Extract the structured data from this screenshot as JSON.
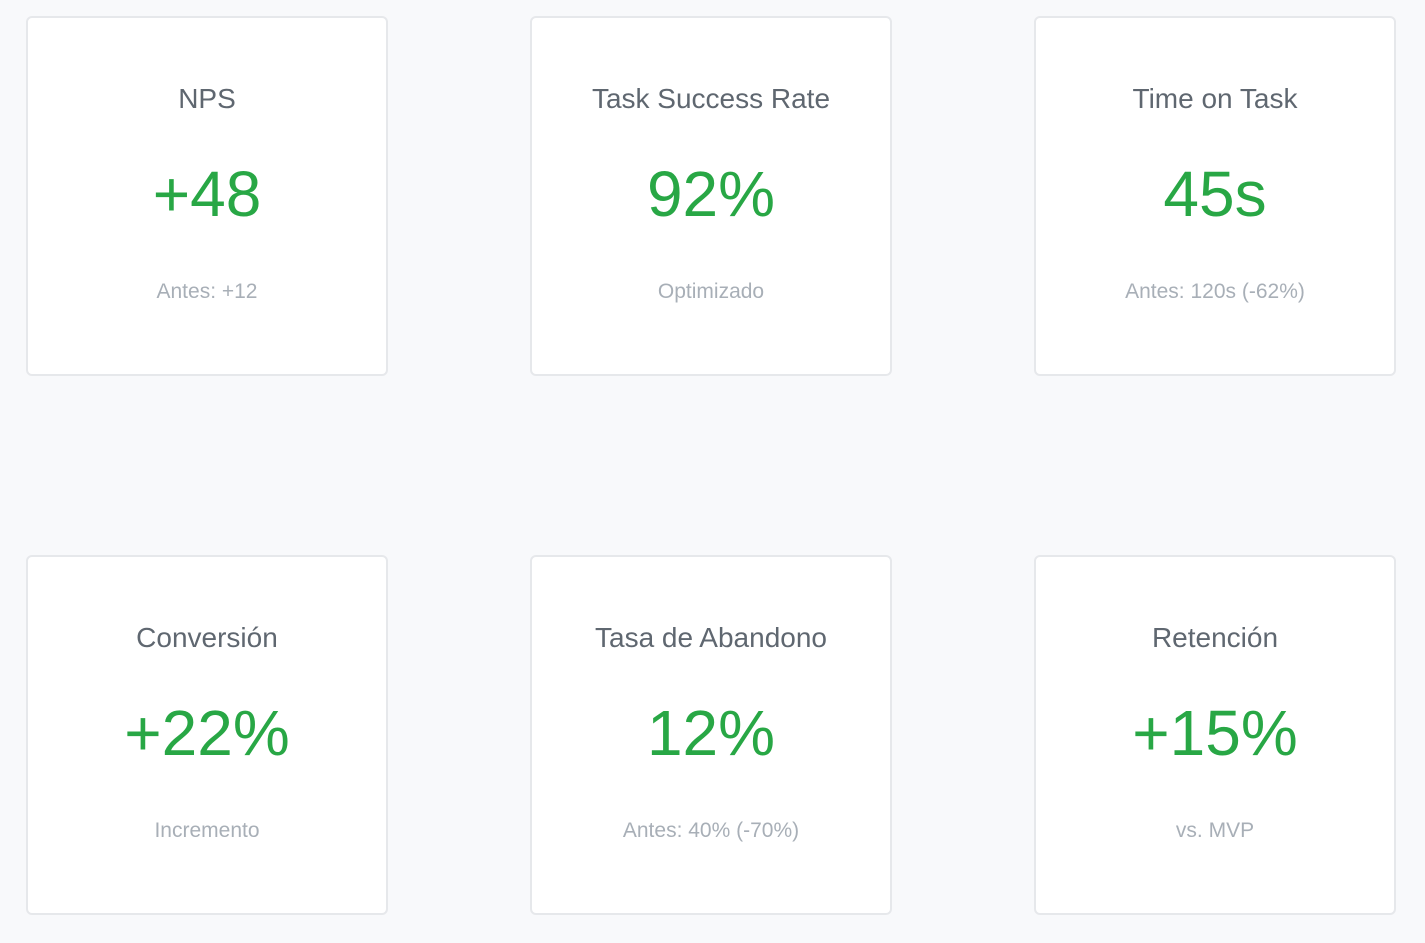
{
  "colors": {
    "background": "#f8f9fb",
    "card": "#ffffff",
    "card_border": "#e6e8eb",
    "title": "#5f6770",
    "value": "#28a745",
    "note": "#a8afb7"
  },
  "metrics": [
    {
      "title": "NPS",
      "value": "+48",
      "note": "Antes: +12"
    },
    {
      "title": "Task Success Rate",
      "value": "92%",
      "note": "Optimizado"
    },
    {
      "title": "Time on Task",
      "value": "45s",
      "note": "Antes: 120s (-62%)"
    },
    {
      "title": "Conversión",
      "value": "+22%",
      "note": "Incremento"
    },
    {
      "title": "Tasa de Abandono",
      "value": "12%",
      "note": "Antes: 40% (-70%)"
    },
    {
      "title": "Retención",
      "value": "+15%",
      "note": "vs. MVP"
    }
  ]
}
